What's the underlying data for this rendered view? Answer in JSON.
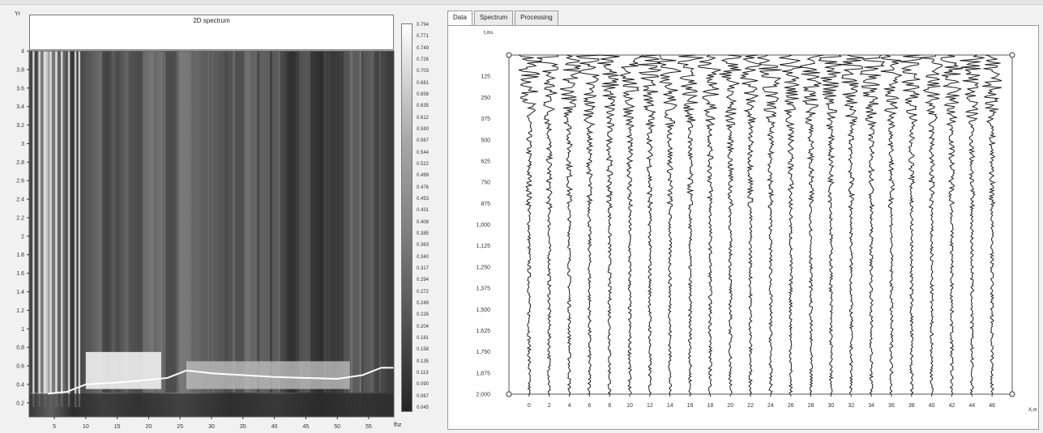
{
  "left_panel": {
    "title": "2D spectrum",
    "y_axis_title": "Yr",
    "x_axis_title": "fhz",
    "colorbar_labels": [
      "0.794",
      "0.771",
      "0.749",
      "0.726",
      "0.703",
      "0.681",
      "0.658",
      "0.635",
      "0.612",
      "0.590",
      "0.567",
      "0.544",
      "0.522",
      "0.499",
      "0.476",
      "0.453",
      "0.431",
      "0.408",
      "0.385",
      "0.363",
      "0.340",
      "0.317",
      "0.294",
      "0.272",
      "0.249",
      "0.226",
      "0.204",
      "0.181",
      "0.158",
      "0.135",
      "0.113",
      "0.090",
      "0.067",
      "0.045"
    ]
  },
  "right_panel": {
    "tabs": [
      "Data",
      "Spectrum",
      "Processing"
    ],
    "active_tab": "Data",
    "time_unit": "t,ms",
    "trace_unit": "X,m"
  },
  "chart_data": [
    {
      "type": "heatmap",
      "title": "2D spectrum",
      "xlabel": "fhz",
      "ylabel": "Yr",
      "x_ticks": [
        "5",
        "10",
        "15",
        "20",
        "25",
        "30",
        "35",
        "40",
        "45",
        "50",
        "55"
      ],
      "x_tick_values": [
        5,
        10,
        15,
        20,
        25,
        30,
        35,
        40,
        45,
        50,
        55
      ],
      "y_ticks": [
        "0.2",
        "0.4",
        "0.6",
        "0.8",
        "1",
        "1.2",
        "1.4",
        "1.6",
        "1.8",
        "2",
        "2.2",
        "2.4",
        "2.6",
        "2.8",
        "3",
        "3.2",
        "3.4",
        "3.6",
        "3.8",
        "4"
      ],
      "y_tick_values": [
        0.2,
        0.4,
        0.6,
        0.8,
        1,
        1.2,
        1.4,
        1.6,
        1.8,
        2,
        2.2,
        2.4,
        2.6,
        2.8,
        3,
        3.2,
        3.4,
        3.6,
        3.8,
        4
      ],
      "xlim": [
        1,
        59
      ],
      "ylim": [
        0.05,
        4
      ],
      "colorscale": [
        "#252525",
        "#ffffff"
      ],
      "dispersion_curve": [
        [
          4,
          0.3
        ],
        [
          7,
          0.32
        ],
        [
          10,
          0.4
        ],
        [
          15,
          0.42
        ],
        [
          20,
          0.45
        ],
        [
          23,
          0.47
        ],
        [
          26,
          0.55
        ],
        [
          30,
          0.52
        ],
        [
          35,
          0.5
        ],
        [
          40,
          0.48
        ],
        [
          45,
          0.47
        ],
        [
          50,
          0.46
        ],
        [
          54,
          0.5
        ],
        [
          57,
          0.58
        ],
        [
          59,
          0.58
        ]
      ]
    },
    {
      "type": "line",
      "xlabel": "X,m",
      "ylabel": "t,ms",
      "x_ticks": [
        "0",
        "2",
        "4",
        "6",
        "8",
        "10",
        "12",
        "14",
        "16",
        "18",
        "20",
        "22",
        "24",
        "26",
        "28",
        "30",
        "32",
        "34",
        "36",
        "38",
        "40",
        "42",
        "44",
        "46"
      ],
      "x_tick_values": [
        0,
        2,
        4,
        6,
        8,
        10,
        12,
        14,
        16,
        18,
        20,
        22,
        24,
        26,
        28,
        30,
        32,
        34,
        36,
        38,
        40,
        42,
        44,
        46
      ],
      "y_ticks": [
        "125",
        "250",
        "375",
        "500",
        "625",
        "750",
        "875",
        "1,000",
        "1,125",
        "1,250",
        "1,375",
        "1,500",
        "1,625",
        "1,750",
        "1,875",
        "2,000"
      ],
      "y_tick_values": [
        125,
        250,
        375,
        500,
        625,
        750,
        875,
        1000,
        1125,
        1250,
        1375,
        1500,
        1625,
        1750,
        1875,
        2000
      ],
      "xlim": [
        -2,
        48
      ],
      "ylim": [
        0,
        2000
      ],
      "trace_count": 24,
      "trace_offsets": [
        0,
        2,
        4,
        6,
        8,
        10,
        12,
        14,
        16,
        18,
        20,
        22,
        24,
        26,
        28,
        30,
        32,
        34,
        36,
        38,
        40,
        42,
        44,
        46
      ]
    }
  ]
}
